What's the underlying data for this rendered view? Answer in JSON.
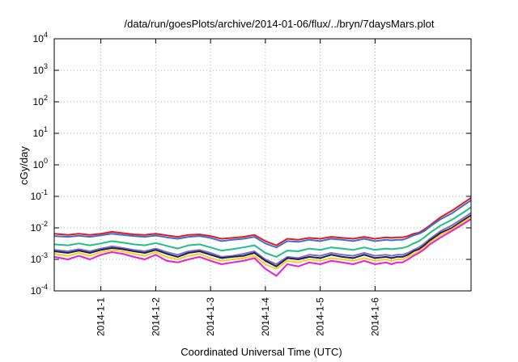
{
  "chart_data": {
    "type": "line",
    "title": "/data/run/goesPlots/archive/2014-01-06/flux/../bryn/7daysMars.plot",
    "xlabel": "Coordinated Universal Time (UTC)",
    "ylabel": "cGy/day",
    "yscale": "log",
    "ylim": [
      0.0001,
      10000
    ],
    "xlim": [
      -0.85,
      6.75
    ],
    "x_unit": "days after 2014-1-1 00:00 UTC",
    "grid": true,
    "y_ticks": [
      {
        "v": 0.0001,
        "base": "10",
        "exp": "-4"
      },
      {
        "v": 0.001,
        "base": "10",
        "exp": "-3"
      },
      {
        "v": 0.01,
        "base": "10",
        "exp": "-2"
      },
      {
        "v": 0.1,
        "base": "10",
        "exp": "-1"
      },
      {
        "v": 1,
        "base": "10",
        "exp": "0"
      },
      {
        "v": 10,
        "base": "10",
        "exp": "1"
      },
      {
        "v": 100,
        "base": "10",
        "exp": "2"
      },
      {
        "v": 1000,
        "base": "10",
        "exp": "3"
      },
      {
        "v": 10000,
        "base": "10",
        "exp": "4"
      }
    ],
    "x_ticks": [
      {
        "x": 0,
        "label": "2014-1-1"
      },
      {
        "x": 1,
        "label": "2014-1-2"
      },
      {
        "x": 2,
        "label": "2014-1-3"
      },
      {
        "x": 3,
        "label": "2014-1-4"
      },
      {
        "x": 4,
        "label": "2014-1-5"
      },
      {
        "x": 5,
        "label": "2014-1-6"
      }
    ],
    "x": [
      -0.85,
      -0.6,
      -0.4,
      -0.2,
      0,
      0.2,
      0.4,
      0.6,
      0.8,
      1.0,
      1.2,
      1.4,
      1.6,
      1.8,
      2.0,
      2.2,
      2.4,
      2.6,
      2.8,
      3.0,
      3.2,
      3.4,
      3.6,
      3.8,
      4.0,
      4.2,
      4.4,
      4.6,
      4.8,
      5.0,
      5.2,
      5.3,
      5.4,
      5.5,
      5.6,
      5.7,
      5.8,
      5.9,
      6.0,
      6.2,
      6.4,
      6.6,
      6.75
    ],
    "series": [
      {
        "color": "#e41a1c",
        "values": [
          0.0065,
          0.006,
          0.0065,
          0.006,
          0.0065,
          0.0075,
          0.0068,
          0.0062,
          0.006,
          0.0065,
          0.0058,
          0.0052,
          0.006,
          0.0062,
          0.0055,
          0.0045,
          0.0048,
          0.0052,
          0.006,
          0.0038,
          0.0028,
          0.0045,
          0.0042,
          0.0048,
          0.0045,
          0.0052,
          0.0048,
          0.0045,
          0.0052,
          0.0045,
          0.005,
          0.0048,
          0.005,
          0.005,
          0.0055,
          0.0065,
          0.007,
          0.009,
          0.012,
          0.022,
          0.035,
          0.06,
          0.09
        ]
      },
      {
        "color": "#3a6fd8",
        "values": [
          0.0055,
          0.0052,
          0.0056,
          0.0052,
          0.0058,
          0.0065,
          0.006,
          0.0055,
          0.0052,
          0.0057,
          0.005,
          0.0045,
          0.0052,
          0.0055,
          0.0048,
          0.0038,
          0.0042,
          0.0045,
          0.0052,
          0.0032,
          0.0024,
          0.0038,
          0.0036,
          0.0042,
          0.0038,
          0.0045,
          0.0042,
          0.0038,
          0.0045,
          0.0038,
          0.0042,
          0.004,
          0.0042,
          0.0042,
          0.0048,
          0.0058,
          0.0065,
          0.008,
          0.011,
          0.019,
          0.029,
          0.05,
          0.075
        ]
      },
      {
        "color": "#1fbf8a",
        "values": [
          0.003,
          0.0028,
          0.0032,
          0.0028,
          0.0032,
          0.0038,
          0.0034,
          0.003,
          0.0028,
          0.0033,
          0.0027,
          0.0022,
          0.0028,
          0.003,
          0.0024,
          0.0019,
          0.0021,
          0.0024,
          0.0028,
          0.0016,
          0.0012,
          0.0019,
          0.0018,
          0.0022,
          0.002,
          0.0024,
          0.0022,
          0.002,
          0.0024,
          0.002,
          0.0022,
          0.0021,
          0.0022,
          0.0023,
          0.0026,
          0.0032,
          0.0038,
          0.005,
          0.007,
          0.012,
          0.018,
          0.03,
          0.045
        ]
      },
      {
        "color": "#7a6fb8",
        "values": [
          0.002,
          0.0018,
          0.0021,
          0.0018,
          0.0022,
          0.0026,
          0.0023,
          0.002,
          0.0018,
          0.0022,
          0.0017,
          0.0014,
          0.0018,
          0.002,
          0.0016,
          0.0012,
          0.0013,
          0.0015,
          0.0018,
          0.001,
          0.0007,
          0.0012,
          0.0011,
          0.0014,
          0.0013,
          0.0016,
          0.0014,
          0.0013,
          0.0016,
          0.0013,
          0.0014,
          0.0013,
          0.0014,
          0.0014,
          0.0016,
          0.002,
          0.0024,
          0.0032,
          0.0045,
          0.008,
          0.012,
          0.02,
          0.03
        ]
      },
      {
        "color": "#1e1e5a",
        "values": [
          0.0018,
          0.0016,
          0.0019,
          0.0016,
          0.002,
          0.0023,
          0.0021,
          0.0018,
          0.0016,
          0.002,
          0.0015,
          0.0012,
          0.0016,
          0.0018,
          0.0014,
          0.0011,
          0.0012,
          0.0013,
          0.0016,
          0.0009,
          0.0006,
          0.0011,
          0.001,
          0.0012,
          0.0011,
          0.0014,
          0.0012,
          0.0011,
          0.0014,
          0.0011,
          0.0012,
          0.0011,
          0.0012,
          0.0012,
          0.0014,
          0.0018,
          0.0021,
          0.0028,
          0.004,
          0.007,
          0.01,
          0.017,
          0.025
        ]
      },
      {
        "color": "#f2d21a",
        "values": [
          0.0015,
          0.0013,
          0.0016,
          0.0013,
          0.0017,
          0.002,
          0.0018,
          0.0015,
          0.0013,
          0.0017,
          0.0012,
          0.001,
          0.0013,
          0.0015,
          0.0011,
          0.0009,
          0.001,
          0.0011,
          0.0013,
          0.0007,
          0.0005,
          0.0009,
          0.0008,
          0.001,
          0.0009,
          0.0011,
          0.001,
          0.0009,
          0.0011,
          0.0009,
          0.001,
          0.0009,
          0.001,
          0.001,
          0.0012,
          0.0015,
          0.0018,
          0.0024,
          0.0035,
          0.006,
          0.009,
          0.015,
          0.022
        ]
      },
      {
        "color": "#ee1bd0",
        "values": [
          0.0012,
          0.001,
          0.0013,
          0.001,
          0.0014,
          0.0017,
          0.0015,
          0.0012,
          0.001,
          0.0014,
          0.0009,
          0.0008,
          0.001,
          0.0012,
          0.0009,
          0.0007,
          0.0008,
          0.0009,
          0.0011,
          0.0005,
          0.0003,
          0.0007,
          0.0006,
          0.0008,
          0.0007,
          0.0009,
          0.0008,
          0.0007,
          0.0009,
          0.0007,
          0.0008,
          0.0007,
          0.0008,
          0.0008,
          0.001,
          0.0013,
          0.0016,
          0.0021,
          0.003,
          0.005,
          0.008,
          0.013,
          0.019
        ]
      }
    ]
  }
}
